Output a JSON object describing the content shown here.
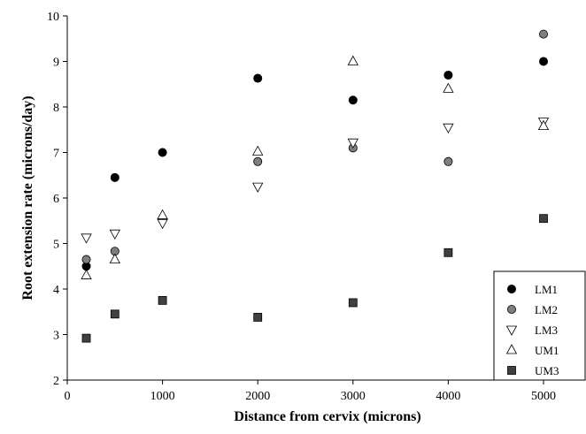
{
  "chart_data": {
    "type": "scatter",
    "xlabel": "Distance from cervix (microns)",
    "ylabel": "Root extension rate (microns/day)",
    "xlim": [
      0,
      5000
    ],
    "ylim": [
      2,
      10
    ],
    "x_ticks": [
      "0",
      "1000",
      "2000",
      "3000",
      "4000",
      "5000"
    ],
    "y_ticks": [
      "2",
      "3",
      "4",
      "5",
      "6",
      "7",
      "8",
      "9",
      "10"
    ],
    "grid": false,
    "legend_position": "bottom-right",
    "series": [
      {
        "name": "LM1",
        "marker": "circle",
        "color": "#000000",
        "points": [
          [
            200,
            4.5
          ],
          [
            500,
            6.45
          ],
          [
            1000,
            7.0
          ],
          [
            2000,
            8.63
          ],
          [
            3000,
            8.15
          ],
          [
            4000,
            8.7
          ],
          [
            5000,
            9.0
          ]
        ]
      },
      {
        "name": "LM2",
        "marker": "circle",
        "color": "#7f7f7f",
        "points": [
          [
            200,
            4.65
          ],
          [
            500,
            4.83
          ],
          [
            1000,
            5.55
          ],
          [
            2000,
            6.8
          ],
          [
            3000,
            7.1
          ],
          [
            4000,
            6.8
          ],
          [
            5000,
            9.6
          ]
        ]
      },
      {
        "name": "LM3",
        "marker": "triangle-down",
        "color": "#ffffff",
        "points": [
          [
            200,
            5.13
          ],
          [
            500,
            5.22
          ],
          [
            1000,
            5.45
          ],
          [
            2000,
            6.25
          ],
          [
            3000,
            7.22
          ],
          [
            4000,
            7.55
          ],
          [
            5000,
            7.68
          ]
        ]
      },
      {
        "name": "UM1",
        "marker": "triangle-up",
        "color": "#ffffff",
        "points": [
          [
            200,
            4.3
          ],
          [
            500,
            4.65
          ],
          [
            1000,
            5.62
          ],
          [
            2000,
            7.02
          ],
          [
            3000,
            9.0
          ],
          [
            4000,
            8.4
          ],
          [
            5000,
            7.58
          ]
        ]
      },
      {
        "name": "UM3",
        "marker": "square",
        "color": "#404040",
        "points": [
          [
            200,
            2.92
          ],
          [
            500,
            3.45
          ],
          [
            1000,
            3.75
          ],
          [
            2000,
            3.38
          ],
          [
            3000,
            3.7
          ],
          [
            4000,
            4.8
          ],
          [
            5000,
            5.55
          ]
        ]
      }
    ]
  }
}
